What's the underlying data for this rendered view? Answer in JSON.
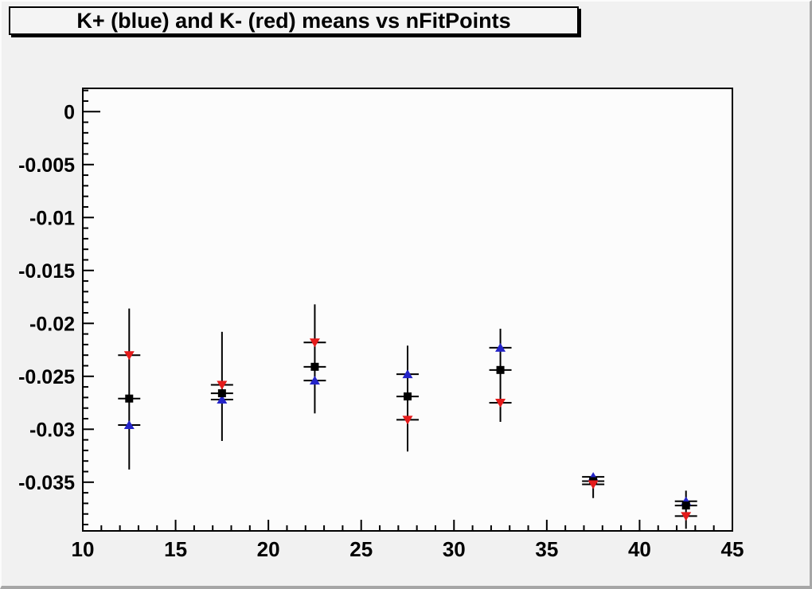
{
  "window": {
    "background": "#f1f1f1"
  },
  "chart_data": {
    "type": "scatter",
    "title": "K+ (blue) and K- (red) means vs nFitPoints",
    "xlabel": "",
    "ylabel": "",
    "grid": false,
    "legend_position": "none (series identified by color in title)",
    "x_axis": {
      "min": 10,
      "max": 45,
      "major_tick_values": [
        10,
        15,
        20,
        25,
        30,
        35,
        40,
        45
      ],
      "major_tick_labels": [
        "10",
        "15",
        "20",
        "25",
        "30",
        "35",
        "40",
        "45"
      ],
      "minor_tick_step": 1
    },
    "y_axis": {
      "min": -0.0396,
      "max": 0.0022,
      "major_tick_values": [
        0,
        -0.005,
        -0.01,
        -0.015,
        -0.02,
        -0.025,
        -0.03,
        -0.035
      ],
      "major_tick_labels": [
        "0",
        "-0.005",
        "-0.01",
        "-0.015",
        "-0.02",
        "-0.025",
        "-0.03",
        "-0.035"
      ],
      "minor_tick_step": 0.001
    },
    "x": [
      12.5,
      17.5,
      22.5,
      27.5,
      32.5,
      37.5,
      42.5
    ],
    "series": [
      {
        "name": "K+ (blue)",
        "marker": "triangle-up",
        "color": "#2424c8",
        "values": [
          -0.0296,
          -0.0272,
          -0.0254,
          -0.0248,
          -0.0223,
          -0.0345,
          -0.0368
        ]
      },
      {
        "name": "mean (black)",
        "marker": "square",
        "color": "#000000",
        "values": [
          -0.0271,
          -0.0266,
          -0.0241,
          -0.0269,
          -0.0244,
          -0.0349,
          -0.0372
        ]
      },
      {
        "name": "K- (red)",
        "marker": "triangle-down",
        "color": "#e41b1b",
        "values": [
          -0.023,
          -0.0258,
          -0.0218,
          -0.0291,
          -0.0275,
          -0.0352,
          -0.0382
        ]
      }
    ],
    "error_bars": [
      {
        "x": 12.5,
        "low": -0.0338,
        "high": -0.0186
      },
      {
        "x": 17.5,
        "low": -0.0311,
        "high": -0.0208
      },
      {
        "x": 22.5,
        "low": -0.0285,
        "high": -0.0182
      },
      {
        "x": 27.5,
        "low": -0.0321,
        "high": -0.0221
      },
      {
        "x": 32.5,
        "low": -0.0293,
        "high": -0.0205
      },
      {
        "x": 37.5,
        "low": -0.0365,
        "high": -0.0342
      },
      {
        "x": 42.5,
        "low": -0.0394,
        "high": -0.0358
      }
    ],
    "x_cap_halfwidth": 0.6
  },
  "style": {
    "canvas_bg": "#f1f1f1",
    "frame_bg": "#fcfcfc",
    "axis_color": "#000000",
    "title_box_bg": "#f4f4f4",
    "title_box_border": "#000000"
  }
}
